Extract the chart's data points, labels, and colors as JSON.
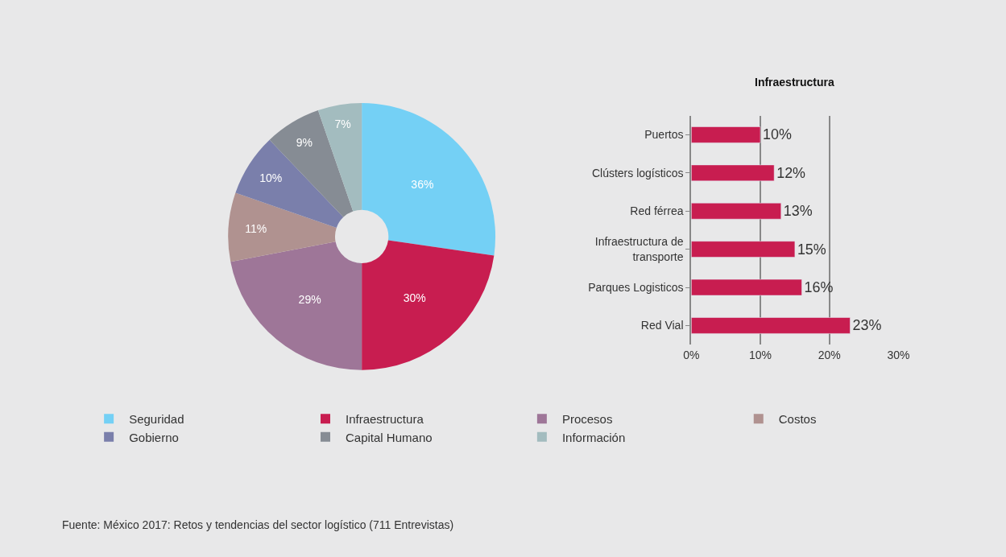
{
  "chart_data": [
    {
      "type": "donut",
      "categories": [
        "Seguridad",
        "Infraestructura",
        "Procesos",
        "Costos",
        "Gobierno",
        "Capital Humano",
        "Información"
      ],
      "values": [
        36,
        30,
        29,
        11,
        10,
        9,
        7
      ],
      "value_labels": [
        "36%",
        "30%",
        "29%",
        "11%",
        "10%",
        "9%",
        "7%"
      ],
      "colors": [
        "#74d0f5",
        "#c81d50",
        "#9e7698",
        "#b09290",
        "#7a7fab",
        "#868c94",
        "#a3bcbf"
      ],
      "legend": "bottom",
      "annotations": [
        "Fuente: México 2017: Retos y tendencias del sector logístico (711 Entrevistas)"
      ]
    },
    {
      "type": "bar",
      "orientation": "horizontal",
      "title": "Infraestructura",
      "categories": [
        "Puertos",
        "Clústers logísticos",
        "Red férrea",
        "Infraestructura de transporte",
        "Parques Logisticos",
        "Red Vial"
      ],
      "values": [
        10,
        12,
        13,
        15,
        16,
        23
      ],
      "value_labels": [
        "10%",
        "12%",
        "13%",
        "15%",
        "16%",
        "23%"
      ],
      "color": "#c81d50",
      "xlim": [
        0,
        30
      ],
      "xticks": [
        {
          "value": 0,
          "label": "0%"
        },
        {
          "value": 10,
          "label": "10%"
        },
        {
          "value": 20,
          "label": "20%"
        },
        {
          "value": 30,
          "label": "30%"
        }
      ],
      "grid": "x"
    }
  ]
}
